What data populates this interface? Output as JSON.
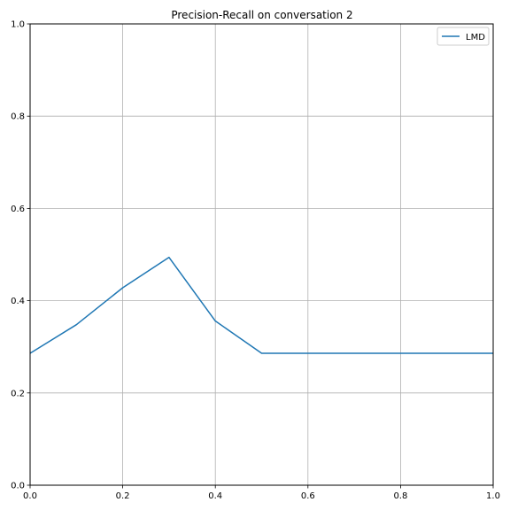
{
  "chart_data": {
    "type": "line",
    "title": "Precision-Recall on conversation 2",
    "xlabel": "",
    "ylabel": "",
    "xlim": [
      0.0,
      1.0
    ],
    "ylim": [
      0.0,
      1.0
    ],
    "x_ticks": [
      "0.0",
      "0.2",
      "0.4",
      "0.6",
      "0.8",
      "1.0"
    ],
    "y_ticks": [
      "0.0",
      "0.2",
      "0.4",
      "0.6",
      "0.8",
      "1.0"
    ],
    "grid": true,
    "legend_position": "top-right",
    "series": [
      {
        "name": "LMD",
        "color": "#1f77b4",
        "x": [
          0.0,
          0.1,
          0.2,
          0.3,
          0.4,
          0.5,
          0.6,
          0.7,
          0.8,
          0.9,
          1.0
        ],
        "y": [
          0.286,
          0.348,
          0.428,
          0.494,
          0.356,
          0.286,
          0.286,
          0.286,
          0.286,
          0.286,
          0.286
        ]
      }
    ]
  }
}
